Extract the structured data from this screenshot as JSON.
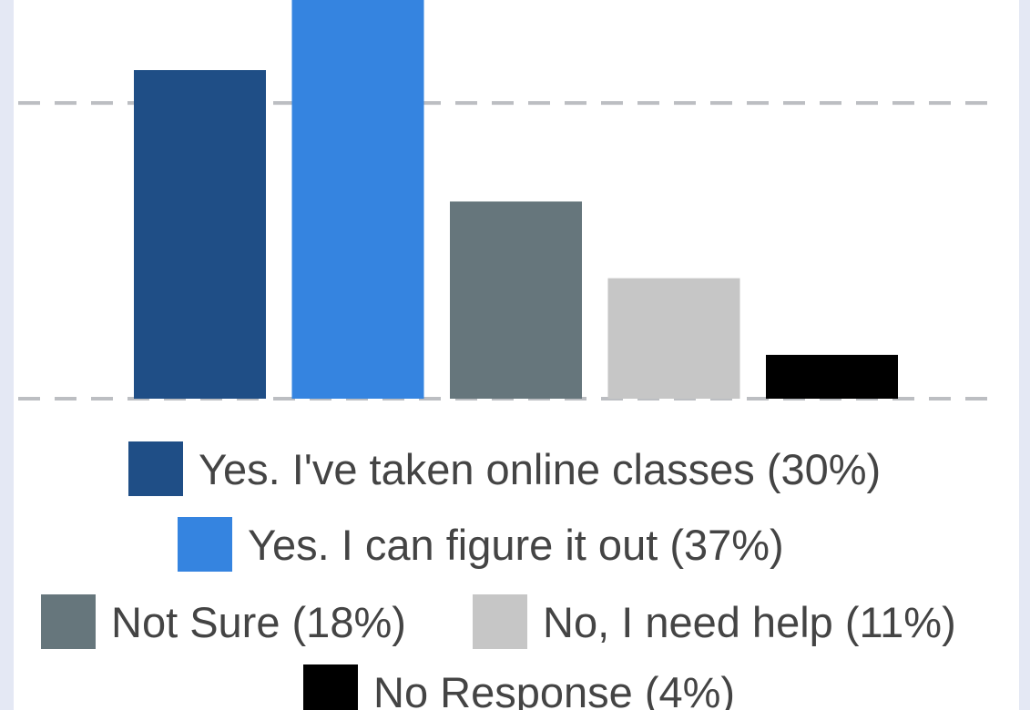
{
  "chart_data": {
    "type": "bar",
    "categories": [
      "Yes. I've taken online classes (30%)",
      "Yes. I can figure it out (37%)",
      "Not Sure (18%)",
      "No, I need help (11%)",
      "No Response (4%)"
    ],
    "values": [
      30,
      37,
      18,
      11,
      4
    ],
    "colors": [
      "#1f4e86",
      "#3584e0",
      "#66767c",
      "#c6c6c6",
      "#000000"
    ],
    "ylim": [
      0,
      36.4
    ],
    "yticks": [
      0,
      27
    ],
    "grid": true
  }
}
